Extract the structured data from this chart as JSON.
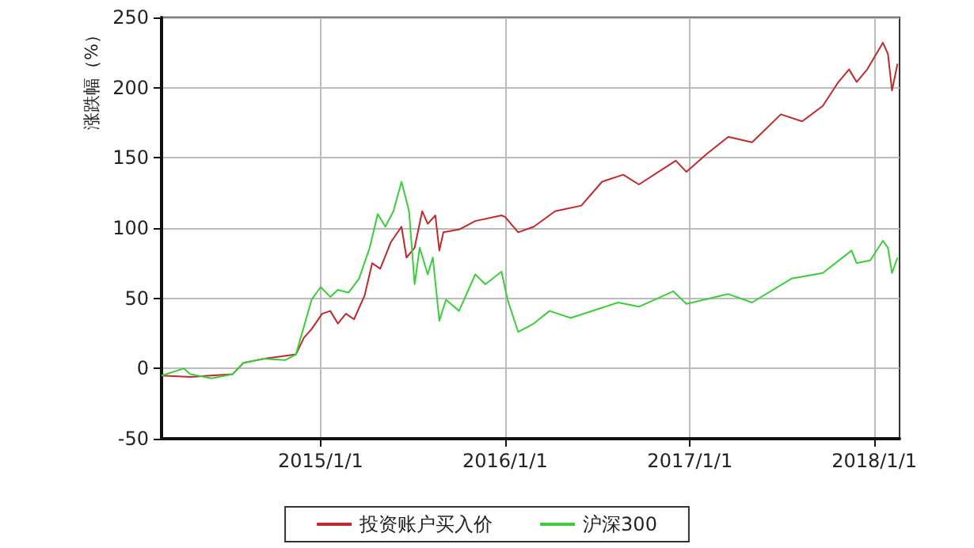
{
  "chart_data": {
    "type": "line",
    "ylabel": "涨跌幅（%）",
    "xlim": [
      "2014-02-20",
      "2018-02-20"
    ],
    "xticks": [
      {
        "value": "2015-01-01",
        "label": "2015/1/1"
      },
      {
        "value": "2016-01-01",
        "label": "2016/1/1"
      },
      {
        "value": "2017-01-01",
        "label": "2017/1/1"
      },
      {
        "value": "2018-01-01",
        "label": "2018/1/1"
      }
    ],
    "ylim": [
      -50,
      250
    ],
    "yticks": [
      -50,
      0,
      50,
      100,
      150,
      200,
      250
    ],
    "grid": true,
    "legend": "bottom",
    "marker": "none",
    "line_style": "solid",
    "series": [
      {
        "name": "投资账户买入价",
        "color": "#c0282d",
        "x": [
          "2014-02-20",
          "2014-04-18",
          "2014-07-11",
          "2014-08-01",
          "2014-09-11",
          "2014-11-13",
          "2014-11-29",
          "2014-12-14",
          "2015-01-04",
          "2015-01-20",
          "2015-02-04",
          "2015-02-20",
          "2015-03-08",
          "2015-03-29",
          "2015-04-13",
          "2015-04-29",
          "2015-05-20",
          "2015-06-10",
          "2015-06-20",
          "2015-07-06",
          "2015-07-21",
          "2015-08-01",
          "2015-08-16",
          "2015-08-24",
          "2015-09-01",
          "2015-10-02",
          "2015-11-03",
          "2015-12-25",
          "2016-01-01",
          "2016-01-27",
          "2016-02-27",
          "2016-04-09",
          "2016-05-31",
          "2016-07-11",
          "2016-08-22",
          "2016-09-22",
          "2016-12-04",
          "2016-12-25",
          "2017-02-04",
          "2017-03-18",
          "2017-05-04",
          "2017-06-30",
          "2017-08-11",
          "2017-09-21",
          "2017-10-22",
          "2017-11-12",
          "2017-11-27",
          "2017-12-18",
          "2018-01-18",
          "2018-01-28",
          "2018-02-05",
          "2018-02-16"
        ],
        "values": [
          -5,
          -6,
          -4,
          4,
          7,
          10,
          22,
          28,
          39,
          41,
          32,
          39,
          35,
          52,
          75,
          71,
          90,
          101,
          79,
          86,
          112,
          103,
          109,
          84,
          97,
          99,
          105,
          109,
          108,
          97,
          101,
          112,
          116,
          133,
          138,
          131,
          148,
          140,
          153,
          165,
          161,
          181,
          176,
          187,
          204,
          213,
          204,
          213,
          232,
          224,
          198,
          217
        ]
      },
      {
        "name": "沪深300",
        "color": "#3ccc3c",
        "x": [
          "2014-02-20",
          "2014-04-05",
          "2014-04-18",
          "2014-05-30",
          "2014-07-11",
          "2014-08-01",
          "2014-09-11",
          "2014-10-23",
          "2014-11-13",
          "2014-11-29",
          "2014-12-14",
          "2015-01-01",
          "2015-01-20",
          "2015-02-04",
          "2015-02-25",
          "2015-03-18",
          "2015-04-08",
          "2015-04-24",
          "2015-05-09",
          "2015-05-25",
          "2015-06-10",
          "2015-06-25",
          "2015-07-06",
          "2015-07-16",
          "2015-08-01",
          "2015-08-11",
          "2015-08-24",
          "2015-09-06",
          "2015-10-02",
          "2015-11-03",
          "2015-11-23",
          "2015-12-25",
          "2016-01-06",
          "2016-01-27",
          "2016-02-27",
          "2016-03-29",
          "2016-05-10",
          "2016-08-12",
          "2016-09-22",
          "2016-11-29",
          "2016-12-25",
          "2017-03-18",
          "2017-05-04",
          "2017-07-21",
          "2017-09-21",
          "2017-11-17",
          "2017-11-27",
          "2017-12-24",
          "2018-01-18",
          "2018-01-28",
          "2018-02-05",
          "2018-02-16"
        ],
        "values": [
          -5,
          0,
          -4,
          -7,
          -4,
          4,
          7,
          6,
          10,
          30,
          49,
          58,
          51,
          56,
          54,
          64,
          86,
          110,
          101,
          112,
          133,
          112,
          60,
          86,
          67,
          79,
          34,
          49,
          41,
          67,
          60,
          69,
          49,
          26,
          32,
          41,
          36,
          47,
          44,
          55,
          46,
          53,
          47,
          64,
          68,
          84,
          75,
          77,
          91,
          86,
          68,
          79
        ]
      }
    ]
  }
}
